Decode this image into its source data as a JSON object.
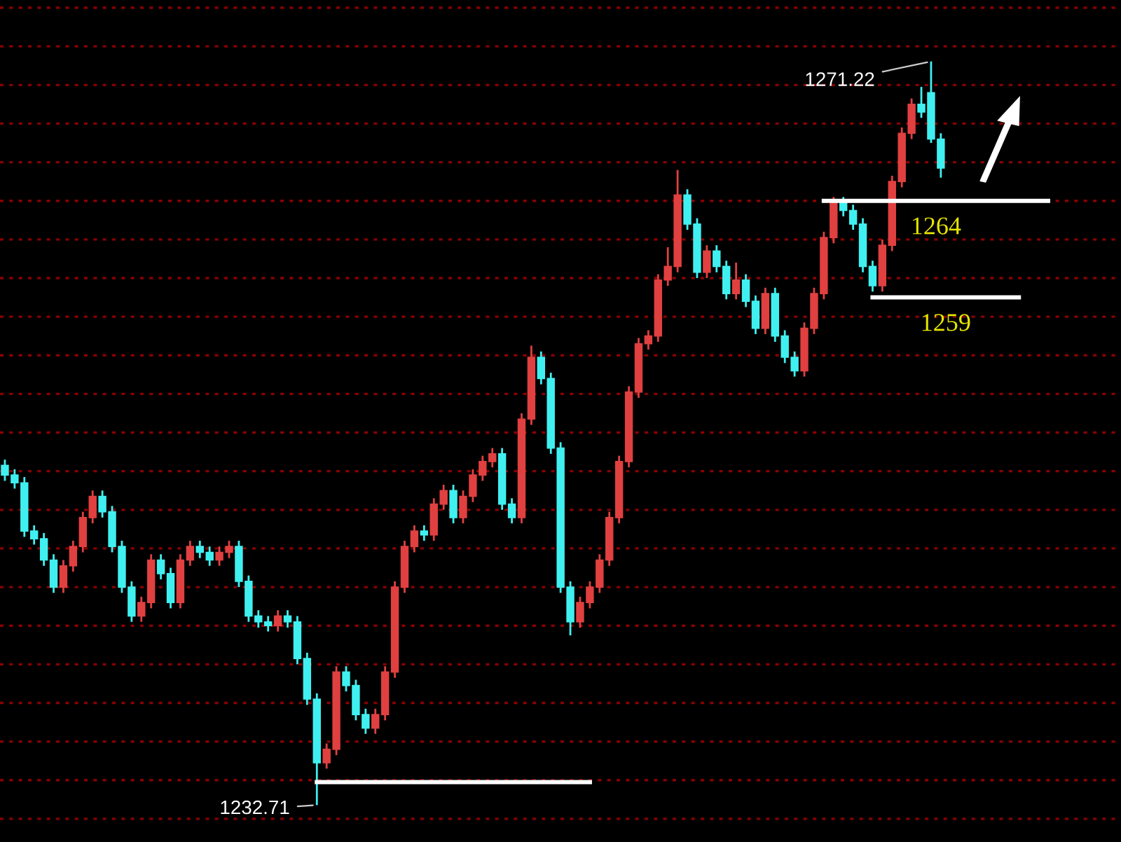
{
  "chart_data": {
    "type": "candlestick",
    "categories": [
      null,
      null,
      null,
      null,
      null,
      null,
      null,
      null,
      null,
      null,
      null,
      null,
      null,
      null,
      null,
      null,
      null,
      null,
      null,
      null,
      null,
      null,
      null,
      null,
      null,
      null,
      null,
      null,
      null,
      null,
      null,
      null,
      null,
      null,
      null,
      null,
      null,
      null,
      null,
      null,
      null,
      null,
      null,
      null,
      null,
      null,
      null,
      null,
      null,
      null,
      null,
      null,
      null,
      null,
      null,
      null,
      null,
      null,
      null,
      null,
      null,
      null,
      null,
      null,
      null,
      null,
      null,
      null,
      null,
      null,
      null,
      null,
      null,
      null,
      null,
      null,
      null,
      null,
      null,
      null,
      null,
      null,
      null,
      null,
      null,
      null,
      null,
      null,
      null,
      null,
      null,
      null,
      null,
      null,
      null,
      null,
      null,
      null,
      null,
      null,
      null,
      null,
      null,
      null,
      null,
      null,
      null,
      null
    ],
    "ohlc": [
      [
        1250.3,
        1250.6,
        1249.5,
        1249.8
      ],
      [
        1249.8,
        1250.1,
        1249.1,
        1249.4
      ],
      [
        1249.4,
        1249.7,
        1246.6,
        1246.9
      ],
      [
        1246.9,
        1247.2,
        1246.2,
        1246.5
      ],
      [
        1246.5,
        1246.8,
        1245.1,
        1245.4
      ],
      [
        1245.4,
        1245.7,
        1243.7,
        1244.0
      ],
      [
        1244.0,
        1245.4,
        1243.7,
        1245.1
      ],
      [
        1245.1,
        1246.4,
        1244.8,
        1246.1
      ],
      [
        1246.1,
        1247.9,
        1245.8,
        1247.6
      ],
      [
        1247.6,
        1249.0,
        1247.3,
        1248.7
      ],
      [
        1248.7,
        1249.0,
        1247.6,
        1247.9
      ],
      [
        1247.9,
        1248.2,
        1245.8,
        1246.1
      ],
      [
        1246.1,
        1246.4,
        1243.7,
        1244.0
      ],
      [
        1244.0,
        1244.3,
        1242.2,
        1242.5
      ],
      [
        1242.5,
        1243.5,
        1242.2,
        1243.2
      ],
      [
        1243.2,
        1245.7,
        1242.9,
        1245.4
      ],
      [
        1245.4,
        1245.7,
        1244.4,
        1244.7
      ],
      [
        1244.7,
        1245.0,
        1242.9,
        1243.2
      ],
      [
        1243.2,
        1245.7,
        1242.9,
        1245.4
      ],
      [
        1245.4,
        1246.4,
        1245.1,
        1246.1
      ],
      [
        1246.1,
        1246.4,
        1245.5,
        1245.8
      ],
      [
        1245.8,
        1246.1,
        1245.1,
        1245.4
      ],
      [
        1245.4,
        1246.1,
        1245.1,
        1245.8
      ],
      [
        1245.8,
        1246.4,
        1245.5,
        1246.1
      ],
      [
        1246.1,
        1246.4,
        1244.0,
        1244.3
      ],
      [
        1244.3,
        1244.6,
        1242.2,
        1242.5
      ],
      [
        1242.5,
        1242.8,
        1241.9,
        1242.2
      ],
      [
        1242.2,
        1242.5,
        1241.7,
        1242.0
      ],
      [
        1242.0,
        1242.8,
        1241.7,
        1242.5
      ],
      [
        1242.5,
        1242.8,
        1241.9,
        1242.2
      ],
      [
        1242.2,
        1242.5,
        1240.0,
        1240.3
      ],
      [
        1240.3,
        1240.6,
        1237.9,
        1238.2
      ],
      [
        1238.2,
        1238.5,
        1232.71,
        1234.9
      ],
      [
        1234.9,
        1235.9,
        1234.6,
        1235.6
      ],
      [
        1235.6,
        1239.9,
        1235.3,
        1239.6
      ],
      [
        1239.6,
        1239.9,
        1238.6,
        1238.9
      ],
      [
        1238.9,
        1239.2,
        1237.1,
        1237.4
      ],
      [
        1237.4,
        1237.7,
        1236.4,
        1236.7
      ],
      [
        1236.7,
        1237.7,
        1236.4,
        1237.4
      ],
      [
        1237.4,
        1239.9,
        1237.1,
        1239.6
      ],
      [
        1239.6,
        1244.3,
        1239.3,
        1244.0
      ],
      [
        1244.0,
        1246.4,
        1243.7,
        1246.1
      ],
      [
        1246.1,
        1247.2,
        1245.8,
        1246.9
      ],
      [
        1246.9,
        1247.2,
        1246.4,
        1246.7
      ],
      [
        1246.7,
        1248.6,
        1246.4,
        1248.3
      ],
      [
        1248.3,
        1249.3,
        1248.0,
        1249.0
      ],
      [
        1249.0,
        1249.3,
        1247.3,
        1247.6
      ],
      [
        1247.6,
        1249.0,
        1247.3,
        1248.7
      ],
      [
        1248.7,
        1250.1,
        1248.4,
        1249.8
      ],
      [
        1249.8,
        1250.8,
        1249.5,
        1250.5
      ],
      [
        1250.5,
        1251.2,
        1250.2,
        1250.9
      ],
      [
        1250.9,
        1251.2,
        1248.0,
        1248.3
      ],
      [
        1248.3,
        1248.6,
        1247.3,
        1247.6
      ],
      [
        1247.6,
        1253.0,
        1247.3,
        1252.7
      ],
      [
        1252.7,
        1256.5,
        1252.4,
        1255.9
      ],
      [
        1255.9,
        1256.2,
        1254.5,
        1254.8
      ],
      [
        1254.8,
        1255.1,
        1250.9,
        1251.2
      ],
      [
        1251.2,
        1251.5,
        1243.7,
        1244.0
      ],
      [
        1244.0,
        1244.3,
        1241.5,
        1242.2
      ],
      [
        1242.2,
        1243.5,
        1241.9,
        1243.2
      ],
      [
        1243.2,
        1244.3,
        1242.9,
        1244.0
      ],
      [
        1244.0,
        1245.7,
        1243.7,
        1245.4
      ],
      [
        1245.4,
        1247.9,
        1245.1,
        1247.6
      ],
      [
        1247.6,
        1250.8,
        1247.3,
        1250.5
      ],
      [
        1250.5,
        1254.4,
        1250.2,
        1254.1
      ],
      [
        1254.1,
        1256.9,
        1253.8,
        1256.6
      ],
      [
        1256.6,
        1257.3,
        1256.3,
        1257.0
      ],
      [
        1257.0,
        1260.2,
        1256.7,
        1259.9
      ],
      [
        1259.9,
        1261.6,
        1259.6,
        1260.6
      ],
      [
        1260.6,
        1265.6,
        1260.3,
        1264.3
      ],
      [
        1264.3,
        1264.6,
        1262.5,
        1262.8
      ],
      [
        1262.8,
        1263.1,
        1260.0,
        1260.3
      ],
      [
        1260.3,
        1261.7,
        1260.0,
        1261.4
      ],
      [
        1261.4,
        1261.7,
        1260.3,
        1260.6
      ],
      [
        1260.6,
        1260.9,
        1258.9,
        1259.2
      ],
      [
        1259.2,
        1260.8,
        1258.9,
        1259.9
      ],
      [
        1259.9,
        1260.2,
        1258.5,
        1258.8
      ],
      [
        1258.8,
        1259.1,
        1257.1,
        1257.4
      ],
      [
        1257.4,
        1259.5,
        1257.1,
        1259.2
      ],
      [
        1259.2,
        1259.5,
        1256.7,
        1257.0
      ],
      [
        1257.0,
        1257.3,
        1255.6,
        1255.9
      ],
      [
        1255.9,
        1256.2,
        1254.9,
        1255.2
      ],
      [
        1255.2,
        1257.7,
        1254.9,
        1257.4
      ],
      [
        1257.4,
        1259.5,
        1257.1,
        1259.2
      ],
      [
        1259.2,
        1262.4,
        1258.9,
        1262.1
      ],
      [
        1262.1,
        1264.2,
        1261.8,
        1263.9
      ],
      [
        1263.9,
        1264.2,
        1263.2,
        1263.5
      ],
      [
        1263.5,
        1263.8,
        1262.5,
        1262.8
      ],
      [
        1262.8,
        1263.1,
        1260.3,
        1260.6
      ],
      [
        1260.6,
        1260.9,
        1259.3,
        1259.6
      ],
      [
        1259.6,
        1262.0,
        1259.3,
        1261.7
      ],
      [
        1261.7,
        1265.3,
        1261.4,
        1265.0
      ],
      [
        1265.0,
        1267.8,
        1264.7,
        1267.5
      ],
      [
        1267.5,
        1269.3,
        1267.2,
        1269.0
      ],
      [
        1269.0,
        1269.9,
        1268.3,
        1268.6
      ],
      [
        1269.6,
        1271.22,
        1267.0,
        1267.2
      ],
      [
        1267.2,
        1267.5,
        1265.2,
        1265.7
      ],
      null,
      null,
      null,
      null,
      null,
      null,
      null,
      null,
      null,
      null,
      null
    ],
    "colors": [
      "#40f0f0",
      "#40f0f0",
      "#40f0f0",
      "#40f0f0",
      "#40f0f0",
      "#40f0f0",
      "#e04040",
      "#e04040",
      "#e04040",
      "#e04040",
      "#40f0f0",
      "#40f0f0",
      "#40f0f0",
      "#40f0f0",
      "#e04040",
      "#e04040",
      "#40f0f0",
      "#40f0f0",
      "#e04040",
      "#e04040",
      "#40f0f0",
      "#40f0f0",
      "#e04040",
      "#e04040",
      "#40f0f0",
      "#40f0f0",
      "#40f0f0",
      "#40f0f0",
      "#e04040",
      "#40f0f0",
      "#40f0f0",
      "#40f0f0",
      "#40f0f0",
      "#e04040",
      "#e04040",
      "#40f0f0",
      "#40f0f0",
      "#40f0f0",
      "#e04040",
      "#e04040",
      "#e04040",
      "#e04040",
      "#e04040",
      "#40f0f0",
      "#e04040",
      "#e04040",
      "#40f0f0",
      "#e04040",
      "#e04040",
      "#e04040",
      "#e04040",
      "#40f0f0",
      "#40f0f0",
      "#e04040",
      "#e04040",
      "#40f0f0",
      "#40f0f0",
      "#40f0f0",
      "#40f0f0",
      "#e04040",
      "#e04040",
      "#e04040",
      "#e04040",
      "#e04040",
      "#e04040",
      "#e04040",
      "#e04040",
      "#e04040",
      "#e04040",
      "#e04040",
      "#40f0f0",
      "#40f0f0",
      "#e04040",
      "#40f0f0",
      "#40f0f0",
      "#e04040",
      "#40f0f0",
      "#40f0f0",
      "#e04040",
      "#40f0f0",
      "#40f0f0",
      "#40f0f0",
      "#e04040",
      "#e04040",
      "#e04040",
      "#e04040",
      "#40f0f0",
      "#40f0f0",
      "#40f0f0",
      "#40f0f0",
      "#e04040",
      "#e04040",
      "#e04040",
      "#e04040",
      "#40f0f0",
      "#40f0f0",
      "#40f0f0",
      null,
      null,
      null,
      null,
      null,
      null,
      null,
      null,
      null,
      null,
      null
    ],
    "series": [
      {
        "type": "line",
        "color": "#ffffff",
        "values": [
          null,
          null,
          null,
          null,
          null,
          null,
          null,
          null,
          null,
          null,
          null,
          null,
          null,
          null,
          null,
          null,
          null,
          null,
          null,
          null,
          null,
          null,
          null,
          null,
          null,
          null,
          null,
          null,
          null,
          null,
          null,
          null,
          null,
          null,
          null,
          null,
          null,
          null,
          null,
          null,
          null,
          null,
          null,
          null,
          null,
          null,
          null,
          null,
          null,
          null,
          null,
          null,
          null,
          null,
          null,
          null,
          null,
          null,
          null,
          null,
          null,
          null,
          null,
          null,
          null,
          null,
          null,
          null,
          null,
          null,
          null,
          null,
          null,
          null,
          null,
          null,
          null,
          null,
          null,
          null,
          null,
          null,
          null,
          null,
          1264,
          1264,
          1264,
          1264,
          1264,
          1264,
          1264,
          1264,
          1264,
          1264,
          1264,
          1264,
          1264,
          1264,
          1264,
          1264,
          1264,
          1264,
          1264,
          1264,
          1264,
          1264,
          1264,
          1264
        ]
      },
      {
        "type": "line",
        "color": "#ffffff",
        "values": [
          null,
          null,
          null,
          null,
          null,
          null,
          null,
          null,
          null,
          null,
          null,
          null,
          null,
          null,
          null,
          null,
          null,
          null,
          null,
          null,
          null,
          null,
          null,
          null,
          null,
          null,
          null,
          null,
          null,
          null,
          null,
          null,
          null,
          null,
          null,
          null,
          null,
          null,
          null,
          null,
          null,
          null,
          null,
          null,
          null,
          null,
          null,
          null,
          null,
          null,
          null,
          null,
          null,
          null,
          null,
          null,
          null,
          null,
          null,
          null,
          null,
          null,
          null,
          null,
          null,
          null,
          null,
          null,
          null,
          null,
          null,
          null,
          null,
          null,
          null,
          null,
          null,
          null,
          null,
          null,
          null,
          null,
          null,
          null,
          null,
          null,
          null,
          null,
          null,
          1259,
          1259,
          1259,
          1259,
          1259,
          1259,
          1259,
          1259,
          1259,
          1259,
          1259,
          1259,
          1259,
          1259,
          1259,
          1259,
          null,
          null,
          null
        ]
      },
      {
        "type": "line",
        "color": "#ffffff",
        "values": [
          null,
          null,
          null,
          null,
          null,
          null,
          null,
          null,
          null,
          null,
          null,
          null,
          null,
          null,
          null,
          null,
          null,
          null,
          null,
          null,
          null,
          null,
          null,
          null,
          null,
          null,
          null,
          null,
          null,
          null,
          null,
          null,
          1233.9,
          1233.9,
          1233.9,
          1233.9,
          1233.9,
          1233.9,
          1233.9,
          1233.9,
          1233.9,
          1233.9,
          1233.9,
          1233.9,
          1233.9,
          1233.9,
          1233.9,
          1233.9,
          1233.9,
          1233.9,
          1233.9,
          1233.9,
          1233.9,
          1233.9,
          1233.9,
          1233.9,
          1233.9,
          1233.9,
          1233.9,
          1233.9,
          1233.9,
          null,
          null,
          null,
          null,
          null,
          null,
          null,
          null,
          null,
          null,
          null,
          null,
          null,
          null,
          null,
          null,
          null,
          null,
          null,
          null,
          null,
          null,
          null,
          null,
          null,
          null,
          null,
          null,
          null,
          null,
          null,
          null,
          null,
          null,
          null,
          null,
          null,
          null,
          null,
          null,
          null,
          null,
          null,
          null,
          null,
          null,
          null
        ]
      }
    ],
    "annotations": [
      "1271.22",
      "1232.71",
      {
        "text": "1264",
        "y": 1264
      },
      {
        "text": "1259",
        "y": 1259
      }
    ],
    "ylim": [
      1230.8,
      1274.4
    ],
    "yticks": [
      {
        "value": 1232,
        "label": null
      },
      {
        "value": 1234,
        "label": null
      },
      {
        "value": 1236,
        "label": null
      },
      {
        "value": 1238,
        "label": null
      },
      {
        "value": 1240,
        "label": null
      },
      {
        "value": 1242,
        "label": null
      },
      {
        "value": 1244,
        "label": null
      },
      {
        "value": 1246,
        "label": null
      },
      {
        "value": 1248,
        "label": null
      },
      {
        "value": 1250,
        "label": null
      },
      {
        "value": 1252,
        "label": null
      },
      {
        "value": 1254,
        "label": null
      },
      {
        "value": 1256,
        "label": null
      },
      {
        "value": 1258,
        "label": null
      },
      {
        "value": 1260,
        "label": null
      },
      {
        "value": 1262,
        "label": null
      },
      {
        "value": 1264,
        "label": null
      },
      {
        "value": 1266,
        "label": null
      },
      {
        "value": 1268,
        "label": null
      },
      {
        "value": 1270,
        "label": null
      },
      {
        "value": 1272,
        "label": null
      },
      {
        "value": 1274,
        "label": null
      }
    ],
    "grid": "y"
  }
}
